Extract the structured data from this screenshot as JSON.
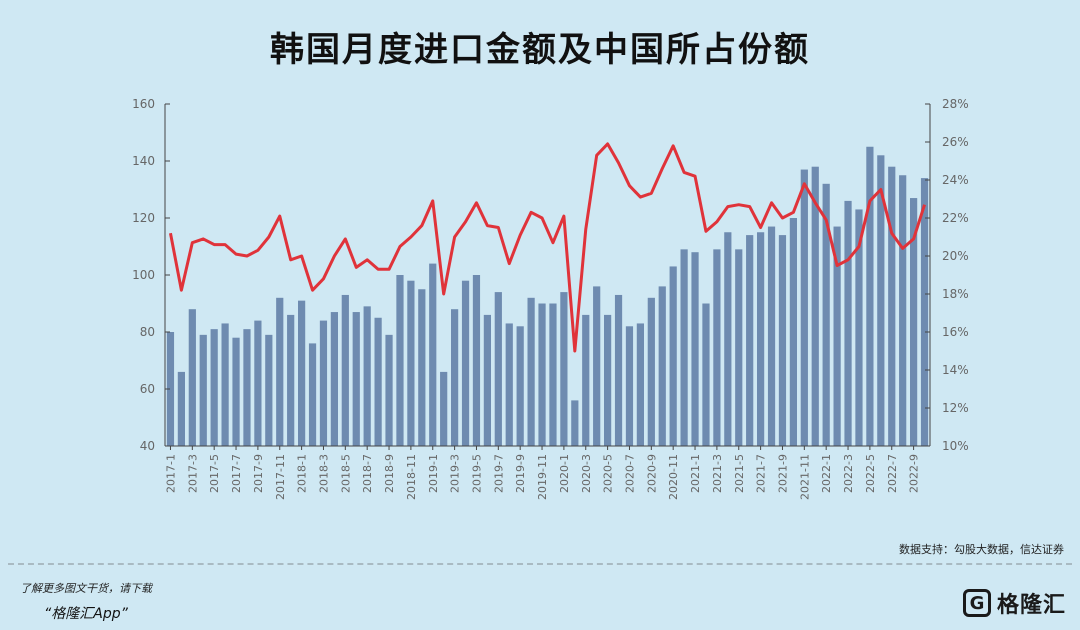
{
  "title": "韩国月度进口金额及中国所占份额",
  "source": "数据支持：勾股大数据，信达证券",
  "promo": {
    "line": "了解更多图文干货，请下载",
    "app": "“格隆汇App”"
  },
  "logo": {
    "icon": "G",
    "text": "格隆汇"
  },
  "colors": {
    "bar": "#6e8bb0",
    "line": "#e0333a",
    "axis": "#444444",
    "background": "#cfe8f3"
  },
  "chart_data": {
    "type": "bar",
    "title": "韩国月度进口金额及中国所占份额",
    "categories": [
      "2017-1",
      "2017-2",
      "2017-3",
      "2017-4",
      "2017-5",
      "2017-6",
      "2017-7",
      "2017-8",
      "2017-9",
      "2017-10",
      "2017-11",
      "2017-12",
      "2018-1",
      "2018-2",
      "2018-3",
      "2018-4",
      "2018-5",
      "2018-6",
      "2018-7",
      "2018-8",
      "2018-9",
      "2018-10",
      "2018-11",
      "2018-12",
      "2019-1",
      "2019-2",
      "2019-3",
      "2019-4",
      "2019-5",
      "2019-6",
      "2019-7",
      "2019-8",
      "2019-9",
      "2019-10",
      "2019-11",
      "2019-12",
      "2020-1",
      "2020-2",
      "2020-3",
      "2020-4",
      "2020-5",
      "2020-6",
      "2020-7",
      "2020-8",
      "2020-9",
      "2020-10",
      "2020-11",
      "2020-12",
      "2021-1",
      "2021-2",
      "2021-3",
      "2021-4",
      "2021-5",
      "2021-6",
      "2021-7",
      "2021-8",
      "2021-9",
      "2021-10",
      "2021-11",
      "2021-12",
      "2022-1",
      "2022-2",
      "2022-3",
      "2022-4",
      "2022-5",
      "2022-6",
      "2022-7",
      "2022-8",
      "2022-9",
      "2022-10"
    ],
    "x_tick_labels": [
      "2017-1",
      "2017-3",
      "2017-5",
      "2017-7",
      "2017-9",
      "2017-11",
      "2018-1",
      "2018-3",
      "2018-5",
      "2018-7",
      "2018-9",
      "2018-11",
      "2019-1",
      "2019-3",
      "2019-5",
      "2019-7",
      "2019-9",
      "2019-11",
      "2020-1",
      "2020-3",
      "2020-5",
      "2020-7",
      "2020-9",
      "2020-11",
      "2021-1",
      "2021-3",
      "2021-5",
      "2021-7",
      "2021-9",
      "2021-11",
      "2022-1",
      "2022-3",
      "2022-5",
      "2022-7",
      "2022-9"
    ],
    "series": [
      {
        "type": "bar",
        "axis": "left",
        "values": [
          80,
          66,
          88,
          79,
          81,
          83,
          78,
          81,
          84,
          79,
          92,
          86,
          91,
          76,
          84,
          87,
          93,
          87,
          89,
          85,
          79,
          100,
          98,
          95,
          104,
          66,
          88,
          98,
          100,
          86,
          94,
          83,
          82,
          92,
          90,
          90,
          94,
          56,
          86,
          96,
          86,
          93,
          82,
          83,
          92,
          96,
          103,
          109,
          108,
          90,
          109,
          115,
          109,
          114,
          115,
          117,
          114,
          120,
          137,
          138,
          132,
          117,
          126,
          123,
          145,
          142,
          138,
          135,
          127,
          134
        ]
      },
      {
        "type": "line",
        "axis": "right",
        "values": [
          21.2,
          18.2,
          20.7,
          20.9,
          20.6,
          20.6,
          20.1,
          20.0,
          20.3,
          21.0,
          22.1,
          19.8,
          20.0,
          18.2,
          18.8,
          20.0,
          20.9,
          19.4,
          19.8,
          19.3,
          19.3,
          20.5,
          21.0,
          21.6,
          22.9,
          18.0,
          21.0,
          21.8,
          22.8,
          21.6,
          21.5,
          19.6,
          21.1,
          22.3,
          22.0,
          20.7,
          22.1,
          15.0,
          21.4,
          25.3,
          25.9,
          24.9,
          23.7,
          23.1,
          23.3,
          24.6,
          25.8,
          24.4,
          24.2,
          21.3,
          21.8,
          22.6,
          22.7,
          22.6,
          21.5,
          22.8,
          22.0,
          22.3,
          23.8,
          22.8,
          21.9,
          19.5,
          19.8,
          20.5,
          22.9,
          23.5,
          21.2,
          20.4,
          20.9,
          22.7
        ]
      }
    ],
    "y_left": {
      "ylim": [
        40,
        160
      ],
      "ticks": [
        "40",
        "60",
        "80",
        "100",
        "120",
        "140",
        "160"
      ]
    },
    "y_right": {
      "ylim": [
        10,
        28
      ],
      "ticks": [
        "10%",
        "12%",
        "14%",
        "16%",
        "18%",
        "20%",
        "22%",
        "24%",
        "26%",
        "28%"
      ]
    },
    "grid": false,
    "legend": "none"
  }
}
